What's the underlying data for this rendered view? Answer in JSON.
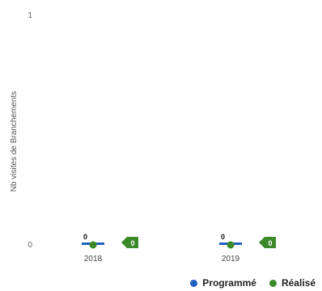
{
  "chart_data": {
    "type": "bar",
    "title": "",
    "xlabel": "",
    "ylabel": "Nb visites de Branchements",
    "ylim": [
      0,
      1
    ],
    "y_ticks": [
      "0",
      "1"
    ],
    "categories": [
      "2018",
      "2019"
    ],
    "series": [
      {
        "name": "Programmé",
        "values": [
          0,
          0
        ],
        "color": "#1f5fbf"
      },
      {
        "name": "Réalisé",
        "values": [
          0,
          0
        ],
        "color": "#3a8a2a"
      }
    ],
    "data_labels": {
      "programme": [
        "0",
        "0"
      ],
      "realise": [
        "0",
        "0"
      ]
    },
    "legend_position": "bottom-right",
    "grid": false
  }
}
